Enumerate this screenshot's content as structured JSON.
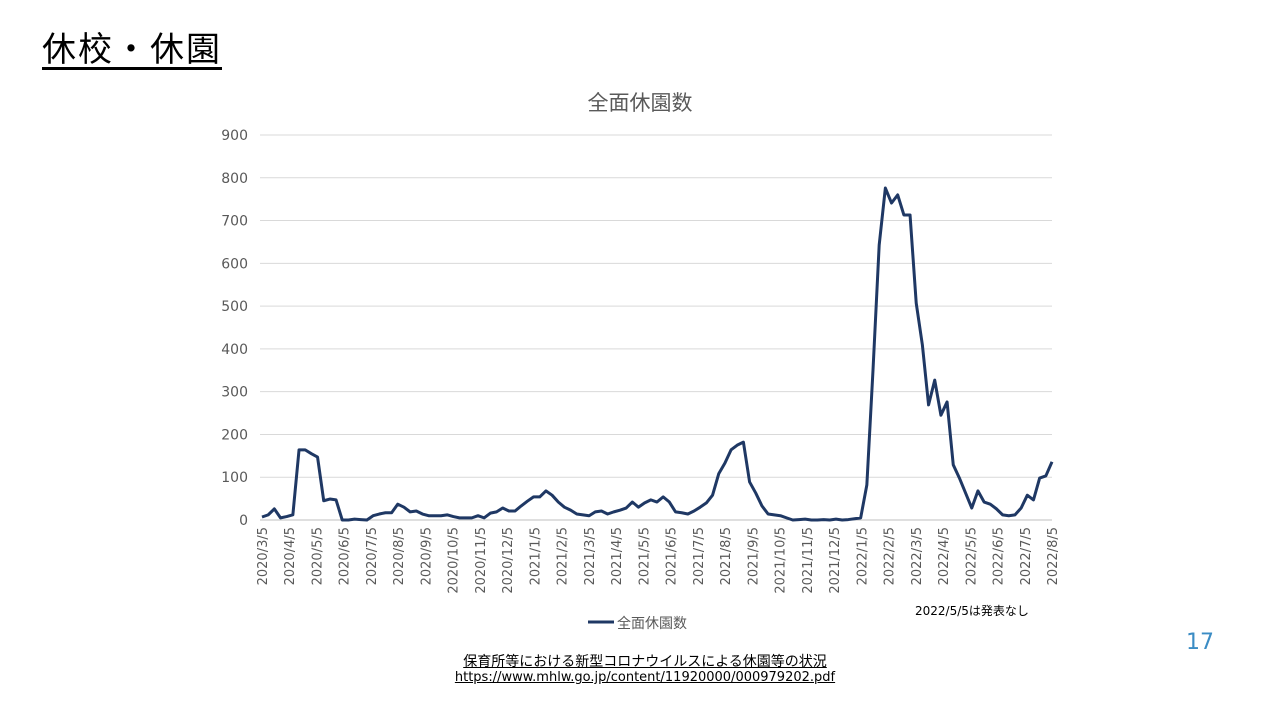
{
  "slide": {
    "title": "休校・休園",
    "note": "2022/5/5は発表なし",
    "source_title": "保育所等における新型コロナウイルスによる休園等の状況",
    "source_url": "https://www.mhlw.go.jp/content/11920000/000979202.pdf",
    "page_number": "17"
  },
  "colors": {
    "line": "#1f3864",
    "grid": "#d9d9d9",
    "axis_text": "#595959",
    "page_number": "#3b8cc4"
  },
  "chart_data": {
    "type": "line",
    "title": "全面休園数",
    "xlabel": "",
    "ylabel": "",
    "ylim": [
      0,
      900
    ],
    "yticks": [
      0,
      100,
      200,
      300,
      400,
      500,
      600,
      700,
      800,
      900
    ],
    "grid": true,
    "legend": "bottom",
    "xticks": [
      "2020/3/5",
      "2020/4/5",
      "2020/5/5",
      "2020/6/5",
      "2020/7/5",
      "2020/8/5",
      "2020/9/5",
      "2020/10/5",
      "2020/11/5",
      "2020/12/5",
      "2021/1/5",
      "2021/2/5",
      "2021/3/5",
      "2021/4/5",
      "2021/5/5",
      "2021/6/5",
      "2021/7/5",
      "2021/8/5",
      "2021/9/5",
      "2021/10/5",
      "2021/11/5",
      "2021/12/5",
      "2022/1/5",
      "2022/2/5",
      "2022/3/5",
      "2022/4/5",
      "2022/5/5",
      "2022/6/5",
      "2022/7/5",
      "2022/8/5"
    ],
    "series": [
      {
        "name": "全面休園数",
        "values": [
          7,
          12,
          26,
          5,
          8,
          12,
          164,
          164,
          155,
          147,
          45,
          49,
          47,
          0,
          0,
          2,
          1,
          0,
          10,
          14,
          17,
          17,
          37,
          30,
          19,
          21,
          14,
          10,
          10,
          10,
          12,
          8,
          5,
          5,
          5,
          10,
          5,
          16,
          19,
          28,
          21,
          21,
          33,
          44,
          54,
          54,
          68,
          58,
          42,
          30,
          23,
          14,
          12,
          10,
          19,
          21,
          14,
          19,
          23,
          28,
          42,
          30,
          40,
          47,
          42,
          54,
          42,
          19,
          17,
          14,
          21,
          30,
          40,
          58,
          108,
          133,
          164,
          175,
          182,
          89,
          63,
          33,
          14,
          12,
          10,
          5,
          0,
          1,
          2,
          0,
          0,
          1,
          0,
          2,
          0,
          1,
          3,
          5,
          82,
          351,
          643,
          776,
          741,
          760,
          713,
          713,
          507,
          409,
          269,
          327,
          245,
          276,
          129,
          98,
          63,
          28,
          68,
          42,
          37,
          26,
          12,
          10,
          12,
          28,
          58,
          47,
          98,
          103,
          136
        ]
      }
    ]
  }
}
